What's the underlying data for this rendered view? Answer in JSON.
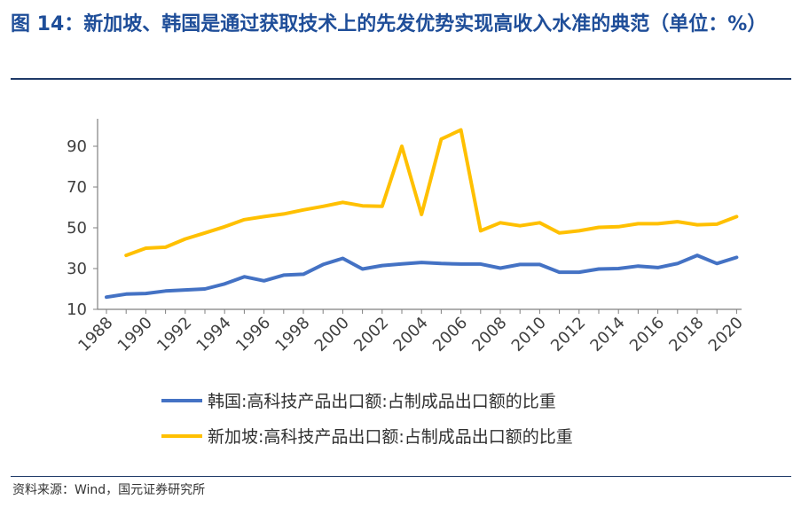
{
  "title": "图 14：新加坡、韩国是通过获取技术上的先发优势实现高收入水准的典范（单位：%）",
  "source": "资料来源：Wind，国元证券研究所",
  "chart_data": {
    "type": "line",
    "x": [
      1988,
      1989,
      1990,
      1991,
      1992,
      1993,
      1994,
      1995,
      1996,
      1997,
      1998,
      1999,
      2000,
      2001,
      2002,
      2003,
      2004,
      2005,
      2006,
      2007,
      2008,
      2009,
      2010,
      2011,
      2012,
      2013,
      2014,
      2015,
      2016,
      2017,
      2018,
      2019,
      2020
    ],
    "xticks": [
      "1988",
      "1990",
      "1992",
      "1994",
      "1996",
      "1998",
      "2000",
      "2002",
      "2004",
      "2006",
      "2008",
      "2010",
      "2012",
      "2014",
      "2016",
      "2018",
      "2020"
    ],
    "yticks": [
      "10",
      "30",
      "50",
      "70",
      "90"
    ],
    "ylim": [
      10,
      100
    ],
    "grid": false,
    "legend_position": "bottom",
    "series": [
      {
        "name": "韩国:高科技产品出口额:占制成品出口额的比重",
        "color": "#4472c4",
        "values": [
          16,
          17.5,
          17.8,
          19,
          19.5,
          20,
          22.5,
          26,
          24,
          26.8,
          27.2,
          32,
          35,
          29.8,
          31.5,
          32.3,
          33,
          32.5,
          32.2,
          32.2,
          30.2,
          32,
          32,
          28.2,
          28.2,
          29.8,
          30,
          31.2,
          30.5,
          32.5,
          36.5,
          32.5,
          35.5
        ]
      },
      {
        "name": "新加坡:高科技产品出口额:占制成品出口额的比重",
        "color": "#ffc000",
        "values": [
          null,
          36.5,
          40,
          40.5,
          44.5,
          47.5,
          50.5,
          54,
          55.5,
          56.8,
          58.8,
          60.5,
          62.5,
          60.8,
          60.5,
          90,
          56.5,
          93.5,
          98,
          48.5,
          52.5,
          51,
          52.5,
          47.5,
          48.5,
          50.2,
          50.5,
          52,
          52,
          53,
          51.5,
          51.8,
          55.5
        ]
      }
    ]
  }
}
